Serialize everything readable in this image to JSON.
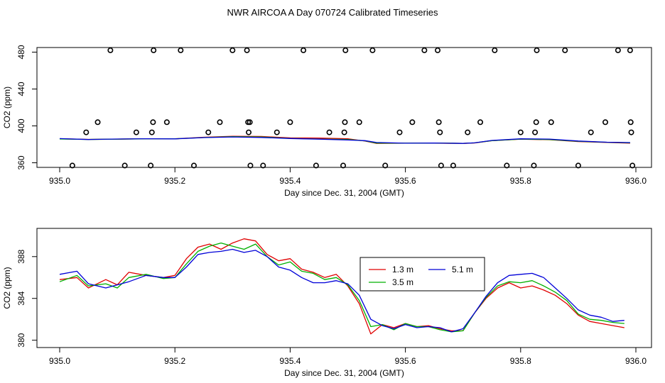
{
  "figure": {
    "title": "NWR AIRCOA A  Day 070724  Calibrated Timeseries"
  },
  "colors": {
    "axes": "#000000",
    "series": [
      "#e00000",
      "#00b000",
      "#0000d8"
    ]
  },
  "chart_data": [
    {
      "type": "line",
      "title": "NWR AIRCOA A  Day 070724  Calibrated Timeseries",
      "xlabel": "Day since Dec. 31, 2004 (GMT)",
      "ylabel": "CO2 (ppm)",
      "xlim": [
        935.0,
        936.0
      ],
      "ylim": [
        355,
        485
      ],
      "xticks": [
        935.0,
        935.2,
        935.4,
        935.6,
        935.8,
        936.0
      ],
      "xtick_labels": [
        "935.0",
        "935.2",
        "935.4",
        "935.6",
        "935.8",
        "936.0"
      ],
      "yticks": [
        360,
        400,
        440,
        480
      ],
      "ytick_labels": [
        "360",
        "400",
        "440",
        "480"
      ],
      "legend": null,
      "series": [
        {
          "name": "1.3 m",
          "color": "#e00000",
          "x": [
            935.0,
            935.05,
            935.1,
            935.15,
            935.2,
            935.25,
            935.3,
            935.35,
            935.4,
            935.45,
            935.5,
            935.53,
            935.55,
            935.6,
            935.65,
            935.7,
            935.72,
            935.75,
            935.8,
            935.85,
            935.9,
            935.95,
            935.99
          ],
          "y": [
            386.0,
            385.4,
            385.6,
            386.1,
            386.0,
            387.7,
            388.8,
            388.5,
            387.0,
            386.8,
            386.0,
            383.5,
            381.0,
            381.2,
            381.3,
            381.0,
            381.5,
            384.0,
            385.6,
            385.0,
            383.0,
            382.0,
            381.3
          ]
        },
        {
          "name": "3.5 m",
          "color": "#00b000",
          "x": [
            935.0,
            935.05,
            935.1,
            935.15,
            935.2,
            935.25,
            935.3,
            935.35,
            935.4,
            935.45,
            935.5,
            935.53,
            935.55,
            935.6,
            935.65,
            935.7,
            935.72,
            935.75,
            935.8,
            935.85,
            935.9,
            935.95,
            935.99
          ],
          "y": [
            385.8,
            385.3,
            385.6,
            386.0,
            386.0,
            387.4,
            388.4,
            388.0,
            386.5,
            385.8,
            385.3,
            383.8,
            381.4,
            381.3,
            381.4,
            381.1,
            381.6,
            384.0,
            385.7,
            385.2,
            383.3,
            382.2,
            381.7
          ]
        },
        {
          "name": "5.1 m",
          "color": "#0000d8",
          "x": [
            935.0,
            935.05,
            935.1,
            935.15,
            935.2,
            935.25,
            935.3,
            935.35,
            935.4,
            935.45,
            935.5,
            935.53,
            935.55,
            935.6,
            935.65,
            935.7,
            935.72,
            935.75,
            935.8,
            935.85,
            935.9,
            935.95,
            935.99
          ],
          "y": [
            386.2,
            385.2,
            385.8,
            386.1,
            385.9,
            387.3,
            388.0,
            387.5,
            386.3,
            385.6,
            384.7,
            384.0,
            382.0,
            381.2,
            381.5,
            381.0,
            381.6,
            384.2,
            386.0,
            385.7,
            383.6,
            382.3,
            381.9
          ]
        }
      ],
      "scatter": {
        "name": "outliers",
        "x": [
          935.022,
          935.046,
          935.066,
          935.088,
          935.113,
          935.133,
          935.158,
          935.16,
          935.162,
          935.163,
          935.186,
          935.21,
          935.233,
          935.258,
          935.278,
          935.3,
          935.325,
          935.327,
          935.328,
          935.33,
          935.331,
          935.353,
          935.377,
          935.4,
          935.423,
          935.445,
          935.468,
          935.492,
          935.494,
          935.495,
          935.496,
          935.52,
          935.543,
          935.565,
          935.59,
          935.612,
          935.633,
          935.656,
          935.658,
          935.66,
          935.662,
          935.683,
          935.708,
          935.73,
          935.755,
          935.776,
          935.8,
          935.823,
          935.825,
          935.827,
          935.828,
          935.853,
          935.877,
          935.9,
          935.922,
          935.947,
          935.969,
          935.99,
          935.991,
          935.992,
          935.994
        ],
        "y": [
          357,
          393,
          404,
          482,
          357,
          393,
          357,
          393,
          404,
          482,
          404,
          482,
          357,
          393,
          404,
          482,
          482,
          404,
          393,
          404,
          357,
          357,
          393,
          404,
          482,
          357,
          393,
          357,
          393,
          404,
          482,
          404,
          482,
          357,
          393,
          404,
          482,
          482,
          404,
          393,
          357,
          357,
          393,
          404,
          482,
          357,
          393,
          357,
          393,
          404,
          482,
          404,
          482,
          357,
          393,
          404,
          482,
          482,
          404,
          393,
          357
        ]
      }
    },
    {
      "type": "line",
      "title": "",
      "xlabel": "Day since Dec. 31, 2004 (GMT)",
      "ylabel": "CO2 (ppm)",
      "xlim": [
        935.0,
        936.0
      ],
      "ylim": [
        379.3,
        390.7
      ],
      "xticks": [
        935.0,
        935.2,
        935.4,
        935.6,
        935.8,
        936.0
      ],
      "xtick_labels": [
        "935.0",
        "935.2",
        "935.4",
        "935.6",
        "935.8",
        "936.0"
      ],
      "yticks": [
        380,
        384,
        388
      ],
      "ytick_labels": [
        "380",
        "384",
        "388"
      ],
      "legend": "center-right",
      "series": [
        {
          "name": "1.3 m",
          "color": "#e00000",
          "x": [
            935.0,
            935.03,
            935.05,
            935.08,
            935.1,
            935.12,
            935.15,
            935.18,
            935.2,
            935.22,
            935.24,
            935.26,
            935.28,
            935.3,
            935.32,
            935.34,
            935.36,
            935.38,
            935.4,
            935.42,
            935.44,
            935.46,
            935.48,
            935.5,
            935.52,
            935.54,
            935.56,
            935.58,
            935.6,
            935.62,
            935.64,
            935.66,
            935.68,
            935.7,
            935.72,
            935.74,
            935.76,
            935.78,
            935.8,
            935.82,
            935.84,
            935.86,
            935.88,
            935.9,
            935.92,
            935.94,
            935.96,
            935.98
          ],
          "y": [
            385.8,
            386.0,
            385.0,
            385.8,
            385.3,
            386.5,
            386.2,
            386.0,
            386.2,
            387.8,
            388.9,
            389.2,
            388.7,
            389.3,
            389.7,
            389.5,
            388.2,
            387.6,
            387.8,
            386.8,
            386.5,
            386.0,
            386.3,
            385.2,
            383.5,
            380.6,
            381.5,
            381.2,
            381.6,
            381.3,
            381.4,
            381.1,
            380.9,
            380.9,
            382.6,
            384.0,
            385.0,
            385.5,
            385.0,
            385.2,
            384.8,
            384.3,
            383.5,
            382.4,
            381.8,
            381.6,
            381.4,
            381.2
          ]
        },
        {
          "name": "3.5 m",
          "color": "#00b000",
          "x": [
            935.0,
            935.03,
            935.05,
            935.08,
            935.1,
            935.12,
            935.15,
            935.18,
            935.2,
            935.22,
            935.24,
            935.26,
            935.28,
            935.3,
            935.32,
            935.34,
            935.36,
            935.38,
            935.4,
            935.42,
            935.44,
            935.46,
            935.48,
            935.5,
            935.52,
            935.54,
            935.56,
            935.58,
            935.6,
            935.62,
            935.64,
            935.66,
            935.68,
            935.7,
            935.72,
            935.74,
            935.76,
            935.78,
            935.8,
            935.82,
            935.84,
            935.86,
            935.88,
            935.9,
            935.92,
            935.94,
            935.96,
            935.98
          ],
          "y": [
            385.6,
            386.2,
            385.2,
            385.4,
            385.0,
            386.0,
            386.3,
            385.9,
            386.0,
            387.3,
            388.5,
            389.0,
            389.3,
            389.0,
            388.7,
            389.2,
            388.0,
            387.2,
            387.5,
            386.6,
            386.4,
            385.8,
            386.0,
            385.3,
            383.8,
            381.3,
            381.5,
            381.0,
            381.6,
            381.3,
            381.3,
            381.0,
            380.8,
            380.9,
            382.6,
            384.1,
            385.2,
            385.6,
            385.5,
            385.7,
            385.2,
            384.6,
            383.8,
            382.5,
            382.0,
            381.9,
            381.7,
            381.6
          ]
        },
        {
          "name": "5.1 m",
          "color": "#0000d8",
          "x": [
            935.0,
            935.03,
            935.05,
            935.08,
            935.1,
            935.12,
            935.15,
            935.18,
            935.2,
            935.22,
            935.24,
            935.26,
            935.28,
            935.3,
            935.32,
            935.34,
            935.36,
            935.38,
            935.4,
            935.42,
            935.44,
            935.46,
            935.48,
            935.5,
            935.52,
            935.54,
            935.56,
            935.58,
            935.6,
            935.62,
            935.64,
            935.66,
            935.68,
            935.7,
            935.72,
            935.74,
            935.76,
            935.78,
            935.8,
            935.82,
            935.84,
            935.86,
            935.88,
            935.9,
            935.92,
            935.94,
            935.96,
            935.98
          ],
          "y": [
            386.3,
            386.6,
            385.4,
            385.0,
            385.3,
            385.6,
            386.2,
            386.0,
            386.0,
            387.0,
            388.2,
            388.4,
            388.5,
            388.7,
            388.4,
            388.6,
            388.0,
            387.0,
            386.7,
            386.0,
            385.5,
            385.5,
            385.7,
            385.4,
            384.3,
            382.0,
            381.4,
            381.1,
            381.5,
            381.2,
            381.3,
            381.2,
            380.8,
            381.1,
            382.6,
            384.2,
            385.5,
            386.2,
            386.3,
            386.4,
            386.0,
            385.0,
            384.0,
            382.9,
            382.4,
            382.2,
            381.8,
            381.9
          ]
        }
      ],
      "legend_entries": [
        {
          "label": "1.3 m",
          "color": "#e00000"
        },
        {
          "label": "5.1 m",
          "color": "#0000d8"
        },
        {
          "label": "3.5 m",
          "color": "#00b000"
        }
      ]
    }
  ]
}
